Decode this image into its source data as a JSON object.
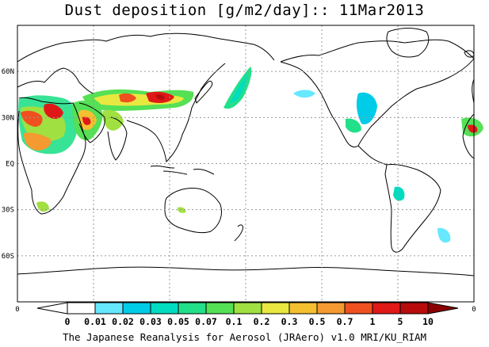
{
  "title": "Dust deposition [g/m2/day]:: 11Mar2013",
  "footer": "The Japanese Reanalysis for Aerosol (JRAero) v1.0 MRI/KU_RIAM",
  "lat_labels": [
    "60N",
    "30N",
    "EQ",
    "30S",
    "60S"
  ],
  "lat_values": [
    60,
    30,
    0,
    -30,
    -60
  ],
  "edge_labels": {
    "left": "0",
    "right": "0"
  },
  "colorbar": {
    "labels": [
      "0",
      "0.01",
      "0.02",
      "0.03",
      "0.05",
      "0.07",
      "0.1",
      "0.2",
      "0.3",
      "0.5",
      "0.7",
      "1",
      "5",
      "10"
    ],
    "colors": [
      "#ffffff",
      "#66e8ff",
      "#00cce8",
      "#00dcc0",
      "#22e08a",
      "#55e055",
      "#a0e040",
      "#e8e840",
      "#f5c030",
      "#f59a30",
      "#f05020",
      "#e01818",
      "#b80c0c",
      "#8a0000"
    ]
  },
  "colors": {
    "coastline": "#000000",
    "grid": "#9a9a9a",
    "land": "#ffffff"
  }
}
